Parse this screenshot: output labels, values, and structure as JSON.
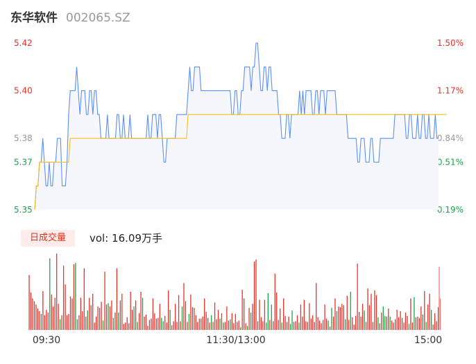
{
  "header": {
    "stock_name": "东华软件",
    "stock_code": "002065.SZ"
  },
  "colors": {
    "price_line": "#5b8ff9",
    "avg_line": "#f6bd16",
    "area_fill": "#f5f7fd",
    "up": "#e8312a",
    "down": "#1aa34a",
    "neutral": "#999999"
  },
  "volume_panel": {
    "badge": "日成交量",
    "vol_text": "vol: 16.09万手"
  },
  "chart_data": [
    {
      "type": "line",
      "name": "intraday-price",
      "y_left_ticks": [
        "5.42",
        "5.40",
        "5.38",
        "5.37",
        "5.35"
      ],
      "y_left_values": [
        5.42,
        5.4,
        5.38,
        5.37,
        5.35
      ],
      "y_right_ticks": [
        "1.50%",
        "1.17%",
        "0.84%",
        "0.51%",
        "0.19%"
      ],
      "ylim": [
        5.35,
        5.42
      ],
      "series": [
        {
          "values": [
            5.35,
            5.36,
            5.36,
            5.37,
            5.37,
            5.38,
            5.37,
            5.36,
            5.36,
            5.37,
            5.36,
            5.36,
            5.37,
            5.37,
            5.38,
            5.38,
            5.38,
            5.36,
            5.36,
            5.36,
            5.37,
            5.39,
            5.4,
            5.4,
            5.4,
            5.4,
            5.41,
            5.4,
            5.39,
            5.4,
            5.4,
            5.4,
            5.39,
            5.39,
            5.4,
            5.4,
            5.39,
            5.4,
            5.4,
            5.39,
            5.39,
            5.38,
            5.38,
            5.38,
            5.38,
            5.39,
            5.38,
            5.38,
            5.38,
            5.38,
            5.38,
            5.39,
            5.39,
            5.38,
            5.38,
            5.39,
            5.38,
            5.38,
            5.38,
            5.39,
            5.38,
            5.38,
            5.38,
            5.38,
            5.38,
            5.38,
            5.38,
            5.38,
            5.38,
            5.38,
            5.39,
            5.38,
            5.38,
            5.39,
            5.39,
            5.39,
            5.38,
            5.39,
            5.39,
            5.38,
            5.37,
            5.37,
            5.38,
            5.38,
            5.38,
            5.38,
            5.38,
            5.38,
            5.39,
            5.39,
            5.39,
            5.39,
            5.39,
            5.39,
            5.39,
            5.4,
            5.41,
            5.4,
            5.4,
            5.41,
            5.41,
            5.41,
            5.41,
            5.4,
            5.4,
            5.4,
            5.4,
            5.4,
            5.4,
            5.4,
            5.4,
            5.4,
            5.4,
            5.4,
            5.4,
            5.4,
            5.4,
            5.4,
            5.4,
            5.4,
            5.4,
            5.4,
            5.39,
            5.39,
            5.4,
            5.4,
            5.39,
            5.39,
            5.4,
            5.4,
            5.41,
            5.41,
            5.41,
            5.41,
            5.4,
            5.41,
            5.41,
            5.42,
            5.42,
            5.41,
            5.4,
            5.4,
            5.41,
            5.41,
            5.4,
            5.41,
            5.41,
            5.4,
            5.4,
            5.4,
            5.4,
            5.39,
            5.39,
            5.38,
            5.38,
            5.38,
            5.39,
            5.39,
            5.38,
            5.39,
            5.39,
            5.39,
            5.39,
            5.39,
            5.4,
            5.39,
            5.4,
            5.39,
            5.4,
            5.4,
            5.4,
            5.4,
            5.39,
            5.39,
            5.4,
            5.4,
            5.39,
            5.4,
            5.4,
            5.4,
            5.39,
            5.4,
            5.4,
            5.4,
            5.4,
            5.4,
            5.4,
            5.39,
            5.39,
            5.39,
            5.39,
            5.39,
            5.39,
            5.39,
            5.38,
            5.38,
            5.38,
            5.38,
            5.38,
            5.38,
            5.37,
            5.37,
            5.38,
            5.38,
            5.38,
            5.37,
            5.37,
            5.37,
            5.38,
            5.38,
            5.37,
            5.37,
            5.37,
            5.37,
            5.38,
            5.38,
            5.38,
            5.38,
            5.38,
            5.38,
            5.38,
            5.38,
            5.38,
            5.39,
            5.39,
            5.39,
            5.39,
            5.39,
            5.39,
            5.39,
            5.38,
            5.38,
            5.39,
            5.39,
            5.38,
            5.38,
            5.38,
            5.39,
            5.38,
            5.38,
            5.39,
            5.39,
            5.38,
            5.38,
            5.39,
            5.38,
            5.38,
            5.38,
            5.39,
            5.38,
            5.38
          ]
        },
        {
          "values": [
            5.35,
            5.36,
            5.36,
            5.37,
            5.37,
            5.37,
            5.37,
            5.37,
            5.37,
            5.37,
            5.37,
            5.37,
            5.37,
            5.37,
            5.37,
            5.37,
            5.37,
            5.37,
            5.37,
            5.37,
            5.37,
            5.37,
            5.38,
            5.38,
            5.38,
            5.38,
            5.38,
            5.38,
            5.38,
            5.38,
            5.38,
            5.38,
            5.38,
            5.38,
            5.38,
            5.38,
            5.38,
            5.38,
            5.38,
            5.38,
            5.38,
            5.38,
            5.38,
            5.38,
            5.38,
            5.38,
            5.38,
            5.38,
            5.38,
            5.38,
            5.38,
            5.38,
            5.38,
            5.38,
            5.38,
            5.38,
            5.38,
            5.38,
            5.38,
            5.38,
            5.38,
            5.38,
            5.38,
            5.38,
            5.38,
            5.38,
            5.38,
            5.38,
            5.38,
            5.38,
            5.38,
            5.38,
            5.38,
            5.38,
            5.38,
            5.38,
            5.38,
            5.38,
            5.38,
            5.38,
            5.38,
            5.38,
            5.38,
            5.38,
            5.38,
            5.38,
            5.38,
            5.38,
            5.38,
            5.38,
            5.38,
            5.38,
            5.38,
            5.38,
            5.38,
            5.39,
            5.39,
            5.39,
            5.39,
            5.39,
            5.39,
            5.39,
            5.39,
            5.39,
            5.39,
            5.39,
            5.39,
            5.39,
            5.39,
            5.39,
            5.39,
            5.39,
            5.39,
            5.39,
            5.39,
            5.39,
            5.39,
            5.39,
            5.39,
            5.39,
            5.39,
            5.39,
            5.39,
            5.39,
            5.39,
            5.39,
            5.39,
            5.39,
            5.39,
            5.39,
            5.39,
            5.39,
            5.39,
            5.39,
            5.39,
            5.39,
            5.39,
            5.39,
            5.39,
            5.39,
            5.39,
            5.39,
            5.39,
            5.39,
            5.39,
            5.39,
            5.39,
            5.39,
            5.39,
            5.39,
            5.39,
            5.39,
            5.39,
            5.39,
            5.39,
            5.39,
            5.39,
            5.39,
            5.39,
            5.39,
            5.39,
            5.39,
            5.39,
            5.39,
            5.39,
            5.39,
            5.39,
            5.39,
            5.39,
            5.39,
            5.39,
            5.39,
            5.39,
            5.39,
            5.39,
            5.39,
            5.39,
            5.39,
            5.39,
            5.39,
            5.39,
            5.39,
            5.39,
            5.39,
            5.39,
            5.39,
            5.39,
            5.39,
            5.39,
            5.39,
            5.39,
            5.39,
            5.39,
            5.39,
            5.39,
            5.39,
            5.39,
            5.39,
            5.39,
            5.39,
            5.39,
            5.39,
            5.39,
            5.39,
            5.39,
            5.39,
            5.39,
            5.39,
            5.39,
            5.39,
            5.39,
            5.39,
            5.39,
            5.39,
            5.39,
            5.39,
            5.39,
            5.39,
            5.39,
            5.39,
            5.39,
            5.39,
            5.39,
            5.39,
            5.39,
            5.39,
            5.39,
            5.39,
            5.39,
            5.39,
            5.39,
            5.39,
            5.39,
            5.39,
            5.39,
            5.39,
            5.39,
            5.39,
            5.39,
            5.39,
            5.39,
            5.39,
            5.39,
            5.39,
            5.39,
            5.39,
            5.39,
            5.39,
            5.39,
            5.39,
            5.39,
            5.39,
            5.39,
            5.39,
            5.39,
            5.39
          ]
        }
      ]
    },
    {
      "type": "bar",
      "name": "volume",
      "x_ticks": [
        "09:30",
        "11:30/13:00",
        "15:00"
      ],
      "directions": [
        "u",
        "u",
        "u",
        "u",
        "u",
        "u",
        "u",
        "d",
        "u",
        "u",
        "u",
        "u",
        "d",
        "u",
        "u",
        "u",
        "u",
        "u",
        "d",
        "u",
        "u",
        "u",
        "u",
        "u",
        "u",
        "u",
        "u",
        "d",
        "d",
        "u",
        "u",
        "u",
        "u",
        "u",
        "d",
        "u",
        "u",
        "u",
        "u",
        "u",
        "u",
        "u",
        "u",
        "d",
        "u",
        "u",
        "d",
        "u",
        "u",
        "d",
        "u",
        "u",
        "d",
        "u",
        "u",
        "u",
        "u",
        "u",
        "u",
        "u",
        "u",
        "d",
        "u",
        "d",
        "u",
        "u",
        "d",
        "u",
        "u",
        "u",
        "u",
        "u",
        "u",
        "u",
        "u",
        "u",
        "u",
        "d",
        "d",
        "u",
        "u",
        "u",
        "d",
        "u",
        "u",
        "u",
        "u",
        "u",
        "u",
        "d",
        "u",
        "u",
        "u",
        "d",
        "u",
        "u",
        "u",
        "u",
        "u",
        "u",
        "u",
        "u",
        "u",
        "u",
        "u",
        "u",
        "d",
        "u",
        "u",
        "u",
        "u",
        "d",
        "u",
        "d",
        "u",
        "u",
        "u",
        "d",
        "u",
        "u",
        "u",
        "u",
        "u",
        "d",
        "u",
        "u",
        "u",
        "d",
        "u",
        "d",
        "u",
        "u",
        "u",
        "u",
        "u",
        "u",
        "u",
        "u",
        "d",
        "d",
        "u",
        "d",
        "u",
        "u",
        "u",
        "u",
        "u",
        "d",
        "u",
        "u",
        "u",
        "u",
        "d",
        "d",
        "u",
        "u",
        "u",
        "d",
        "u",
        "u",
        "u",
        "u",
        "u",
        "u",
        "u",
        "u",
        "u",
        "u",
        "u",
        "u",
        "u",
        "u",
        "u",
        "u",
        "d",
        "u",
        "d",
        "u",
        "u",
        "d",
        "u",
        "u",
        "u",
        "u",
        "d",
        "u",
        "u",
        "d",
        "u",
        "u",
        "u",
        "u",
        "u",
        "u",
        "u",
        "d",
        "u",
        "u",
        "u",
        "u",
        "u",
        "u",
        "u",
        "d",
        "u",
        "u",
        "d",
        "d",
        "u",
        "u",
        "d",
        "u",
        "u",
        "u",
        "u",
        "u",
        "u",
        "u",
        "u",
        "u",
        "u",
        "d",
        "u",
        "u",
        "d",
        "u",
        "u",
        "u",
        "u",
        "d",
        "u",
        "d",
        "u",
        "u",
        "d",
        "u",
        "u",
        "u",
        "u",
        "u",
        "d",
        "u",
        "u",
        "u",
        "d",
        "u",
        "u",
        "d",
        "u",
        "d",
        "u",
        "u",
        "u"
      ],
      "values": [
        82,
        56,
        47,
        43,
        38,
        32,
        28,
        24,
        58,
        22,
        30,
        26,
        107,
        53,
        35,
        48,
        114,
        39,
        16,
        22,
        96,
        68,
        22,
        24,
        50,
        47,
        98,
        100,
        16,
        22,
        48,
        28,
        92,
        20,
        29,
        48,
        37,
        54,
        11,
        20,
        35,
        33,
        42,
        14,
        87,
        38,
        40,
        35,
        44,
        18,
        26,
        92,
        26,
        44,
        54,
        9,
        11,
        19,
        10,
        57,
        30,
        35,
        44,
        12,
        25,
        57,
        48,
        20,
        23,
        6,
        15,
        17,
        47,
        25,
        17,
        18,
        39,
        18,
        13,
        21,
        11,
        59,
        30,
        7,
        13,
        39,
        12,
        52,
        13,
        35,
        70,
        43,
        12,
        24,
        53,
        34,
        33,
        22,
        12,
        17,
        17,
        20,
        47,
        27,
        18,
        11,
        22,
        12,
        41,
        16,
        30,
        17,
        25,
        11,
        12,
        35,
        14,
        16,
        25,
        10,
        24,
        12,
        14,
        4,
        60,
        47,
        10,
        6,
        33,
        26,
        39,
        102,
        105,
        13,
        45,
        19,
        13,
        45,
        11,
        55,
        15,
        38,
        13,
        84,
        56,
        15,
        32,
        11,
        47,
        21,
        12,
        20,
        9,
        29,
        12,
        13,
        22,
        11,
        38,
        20,
        45,
        13,
        12,
        40,
        17,
        22,
        12,
        70,
        19,
        14,
        10,
        15,
        38,
        17,
        14,
        5,
        33,
        20,
        47,
        28,
        35,
        34,
        39,
        37,
        16,
        51,
        15,
        57,
        19,
        8,
        21,
        99,
        27,
        20,
        39,
        29,
        12,
        62,
        37,
        54,
        12,
        59,
        52,
        19,
        10,
        26,
        35,
        21,
        20,
        32,
        20,
        14,
        11,
        16,
        30,
        19,
        28,
        18,
        11,
        26,
        21,
        9,
        47,
        11,
        49,
        19,
        20,
        18,
        35,
        23,
        58,
        12,
        38,
        54,
        30,
        8,
        25,
        13,
        34,
        47
      ]
    }
  ]
}
